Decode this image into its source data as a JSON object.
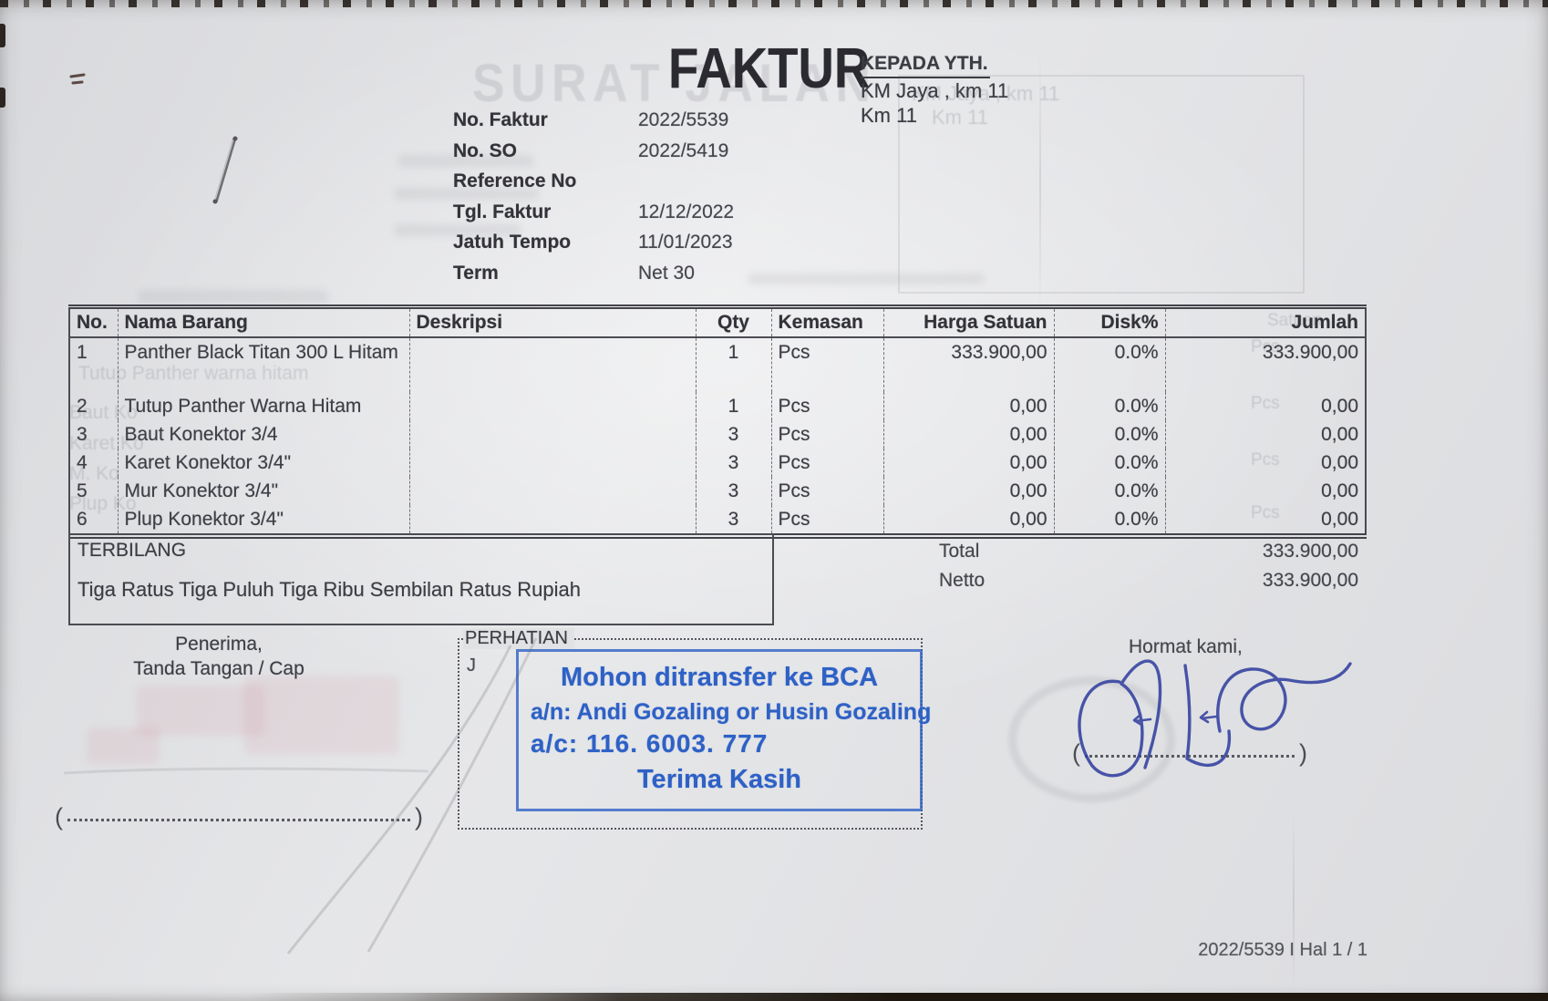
{
  "invoice": {
    "title": "FAKTUR",
    "recipient": {
      "heading": "KEPADA YTH.",
      "line1": "KM Jaya , km 11",
      "line2": "Km 11"
    },
    "meta": [
      {
        "label": "No. Faktur",
        "value": "2022/5539"
      },
      {
        "label": "No. SO",
        "value": "2022/5419"
      },
      {
        "label": "Reference No",
        "value": ""
      },
      {
        "label": "Tgl. Faktur",
        "value": "12/12/2022"
      },
      {
        "label": "Jatuh Tempo",
        "value": "11/01/2023"
      },
      {
        "label": "Term",
        "value": "Net 30"
      }
    ],
    "table": {
      "headers": [
        "No.",
        "Nama Barang",
        "Deskripsi",
        "Qty",
        "Kemasan",
        "Harga Satuan",
        "Disk%",
        "Jumlah"
      ],
      "rows": [
        {
          "no": "1",
          "nama": "Panther Black Titan 300 L Hitam",
          "deskripsi": "",
          "qty": "1",
          "kemasan": "Pcs",
          "harga": "333.900,00",
          "disk": "0.0%",
          "jumlah": "333.900,00"
        },
        {
          "no": "2",
          "nama": "Tutup Panther Warna Hitam",
          "deskripsi": "",
          "qty": "1",
          "kemasan": "Pcs",
          "harga": "0,00",
          "disk": "0.0%",
          "jumlah": "0,00"
        },
        {
          "no": "3",
          "nama": "Baut Konektor 3/4",
          "deskripsi": "",
          "qty": "3",
          "kemasan": "Pcs",
          "harga": "0,00",
          "disk": "0.0%",
          "jumlah": "0,00"
        },
        {
          "no": "4",
          "nama": "Karet Konektor 3/4\"",
          "deskripsi": "",
          "qty": "3",
          "kemasan": "Pcs",
          "harga": "0,00",
          "disk": "0.0%",
          "jumlah": "0,00"
        },
        {
          "no": "5",
          "nama": "Mur Konektor 3/4\"",
          "deskripsi": "",
          "qty": "3",
          "kemasan": "Pcs",
          "harga": "0,00",
          "disk": "0.0%",
          "jumlah": "0,00"
        },
        {
          "no": "6",
          "nama": "Plup Konektor 3/4\"",
          "deskripsi": "",
          "qty": "3",
          "kemasan": "Pcs",
          "harga": "0,00",
          "disk": "0.0%",
          "jumlah": "0,00"
        }
      ]
    },
    "terbilang": {
      "label": "TERBILANG",
      "text": "Tiga Ratus Tiga Puluh Tiga Ribu Sembilan Ratus Rupiah"
    },
    "totals": [
      {
        "label": "Total",
        "value": "333.900,00"
      },
      {
        "label": "Netto",
        "value": "333.900,00"
      }
    ],
    "signature_left": {
      "line1": "Penerima,",
      "line2": "Tanda Tangan / Cap"
    },
    "attention": {
      "label": "PERHATIAN",
      "note": "J"
    },
    "stamp": {
      "line1": "Mohon ditransfer ke BCA",
      "line2": "a/n: Andi Gozaling or Husin Gozaling",
      "line3": "a/c: 116. 6003. 777",
      "line4": "Terima Kasih"
    },
    "signature_right": {
      "label": "Hormat kami,"
    },
    "footer": "2022/5539 I Hal 1 / 1",
    "ghosts": {
      "title": "SURAT JALAN",
      "recipient1": "KM Jaya , km 11",
      "recipient2": "Km 11",
      "satuan": "Satuan",
      "pcs": "Pcs",
      "items": [
        "Tutup Panther warna hitam",
        "Baut Ko",
        "Karet Ko",
        "M. Ko",
        "Plup Ko"
      ]
    },
    "colors": {
      "stamp_blue": "#2e61c6",
      "ink_blue": "#32409f",
      "paper": "#e1e2e4"
    }
  }
}
